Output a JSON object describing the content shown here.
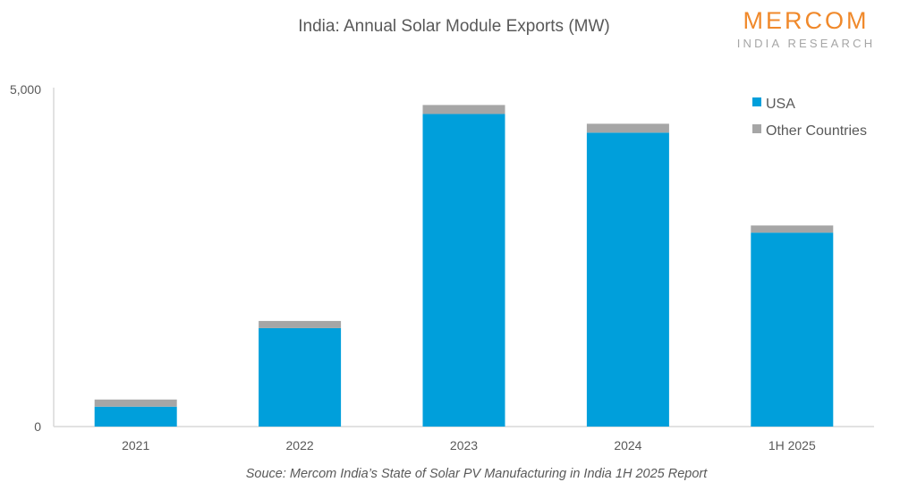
{
  "header": {
    "logo_main": "MERCOM",
    "logo_sub": "INDIA RESEARCH"
  },
  "source": "Souce: Mercom India’s State of Solar PV Manufacturing in India 1H 2025 Report",
  "chart_data": {
    "type": "bar",
    "stacked": true,
    "title": "India: Annual Solar Module Exports (MW)",
    "xlabel": "",
    "ylabel": "",
    "categories": [
      "2021",
      "2022",
      "2023",
      "2024",
      "1H 2025"
    ],
    "series": [
      {
        "name": "USA",
        "color": "#009FDB",
        "values": [
          295,
          1460,
          4636,
          4359,
          2876
        ]
      },
      {
        "name": "Other Countries",
        "color": "#A6A6A6",
        "values": [
          106,
          106,
          133,
          132,
          106
        ]
      }
    ],
    "ylim": [
      0,
      5000
    ],
    "yticks": [
      "0",
      "5,000"
    ],
    "yticks_values": [
      0,
      5000
    ],
    "grid": false,
    "legend": "top-right"
  }
}
